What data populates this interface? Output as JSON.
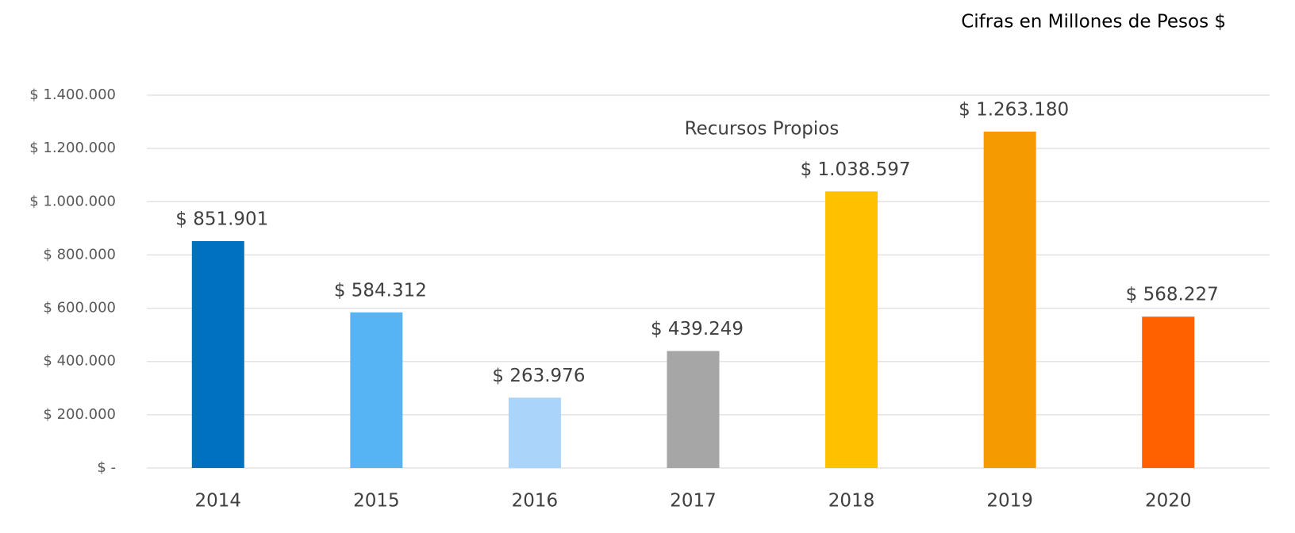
{
  "chart_data": {
    "type": "bar",
    "title": "Recursos Propios",
    "note": "Cifras en Millones de Pesos $",
    "categories": [
      "2014",
      "2015",
      "2016",
      "2017",
      "2018",
      "2019",
      "2020"
    ],
    "values": [
      851901,
      584312,
      263976,
      439249,
      1038597,
      1263180,
      568227
    ],
    "value_labels": [
      "$ 851.901",
      "$ 584.312",
      "$ 263.976",
      "$ 439.249",
      "$ 1.038.597",
      "$ 1.263.180",
      "$ 568.227"
    ],
    "colors": [
      "#0070c0",
      "#56b4f5",
      "#aad4fa",
      "#a6a6a6",
      "#ffc000",
      "#f59a00",
      "#ff6000"
    ],
    "ylim": [
      0,
      1400000
    ],
    "yticks": [
      {
        "value": 0,
        "label": "$ -"
      },
      {
        "value": 200000,
        "label": "$ 200.000"
      },
      {
        "value": 400000,
        "label": "$ 400.000"
      },
      {
        "value": 600000,
        "label": "$ 600.000"
      },
      {
        "value": 800000,
        "label": "$ 800.000"
      },
      {
        "value": 1000000,
        "label": "$ 1.000.000"
      },
      {
        "value": 1200000,
        "label": "$ 1.200.000"
      },
      {
        "value": 1400000,
        "label": "$ 1.400.000"
      }
    ],
    "grid": true
  }
}
